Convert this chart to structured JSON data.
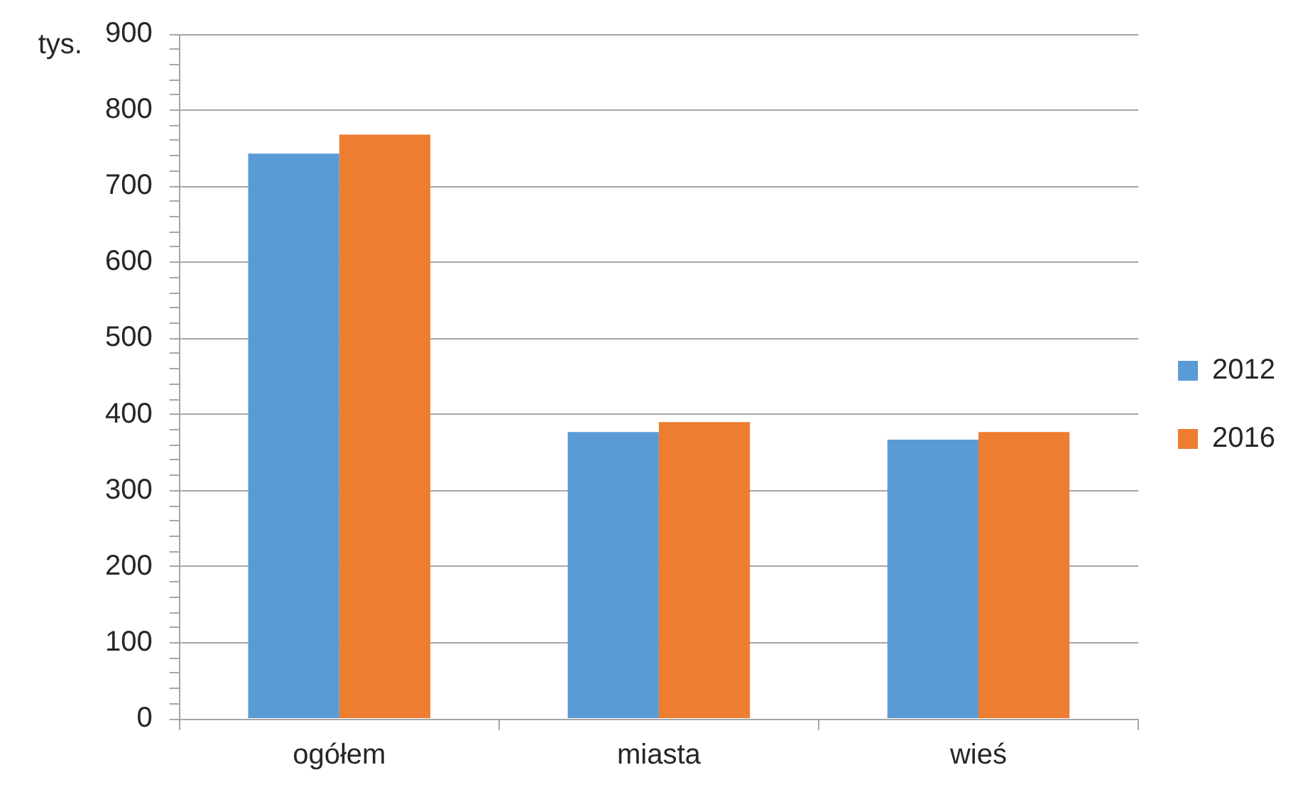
{
  "chart_data": {
    "type": "bar",
    "ylabel": "tys.",
    "categories": [
      "ogółem",
      "miasta",
      "wieś"
    ],
    "series": [
      {
        "name": "2012",
        "color": "#5b9bd5",
        "values": [
          743,
          377,
          367
        ]
      },
      {
        "name": "2016",
        "color": "#ed7d31",
        "values": [
          768,
          390,
          377
        ]
      }
    ],
    "ylim": [
      0,
      900
    ],
    "yticks": [
      0,
      {
        "value": 20,
        "label": null
      },
      {
        "value": 40,
        "label": null
      },
      {
        "value": 60,
        "label": null
      },
      {
        "value": 80,
        "label": null
      },
      100,
      {
        "value": 120,
        "label": null
      },
      {
        "value": 140,
        "label": null
      },
      {
        "value": 160,
        "label": null
      },
      {
        "value": 180,
        "label": null
      },
      200,
      {
        "value": 220,
        "label": null
      },
      {
        "value": 240,
        "label": null
      },
      {
        "value": 260,
        "label": null
      },
      {
        "value": 280,
        "label": null
      },
      300,
      {
        "value": 320,
        "label": null
      },
      {
        "value": 340,
        "label": null
      },
      {
        "value": 360,
        "label": null
      },
      {
        "value": 380,
        "label": null
      },
      400,
      {
        "value": 420,
        "label": null
      },
      {
        "value": 440,
        "label": null
      },
      {
        "value": 460,
        "label": null
      },
      {
        "value": 480,
        "label": null
      },
      500,
      {
        "value": 520,
        "label": null
      },
      {
        "value": 540,
        "label": null
      },
      {
        "value": 560,
        "label": null
      },
      {
        "value": 580,
        "label": null
      },
      600,
      {
        "value": 620,
        "label": null
      },
      {
        "value": 640,
        "label": null
      },
      {
        "value": 660,
        "label": null
      },
      {
        "value": 680,
        "label": null
      },
      700,
      {
        "value": 720,
        "label": null
      },
      {
        "value": 740,
        "label": null
      },
      {
        "value": 760,
        "label": null
      },
      {
        "value": 780,
        "label": null
      },
      800,
      {
        "value": 820,
        "label": null
      },
      {
        "value": 840,
        "label": null
      },
      {
        "value": 860,
        "label": null
      },
      {
        "value": 880,
        "label": null
      },
      900
    ],
    "grid": "y",
    "legend": "right"
  }
}
